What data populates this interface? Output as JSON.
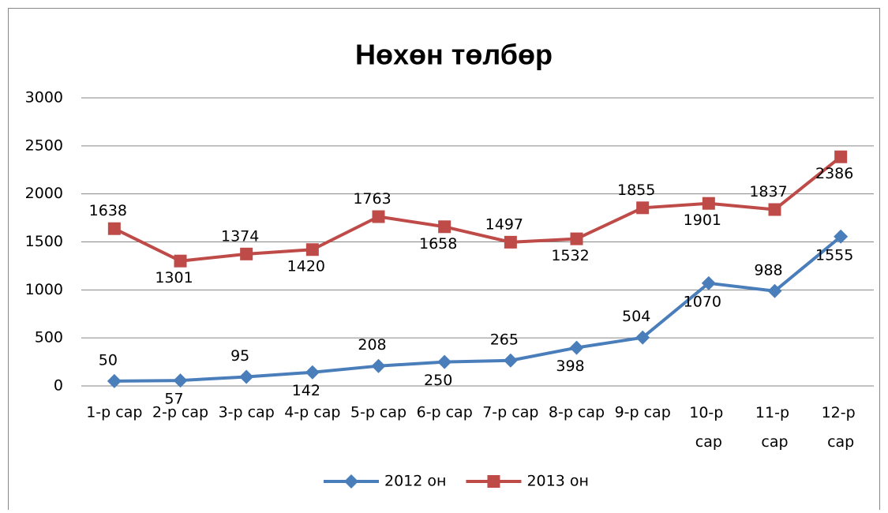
{
  "chart_data": {
    "type": "line",
    "title": "Нөхөн төлбөр",
    "categories": [
      "1-р сар",
      "2-р сар",
      "3-р сар",
      "4-р сар",
      "5-р сар",
      "6-р сар",
      "7-р сар",
      "8-р сар",
      "9-р сар",
      "10-р сар",
      "11-р сар",
      "12-р сар"
    ],
    "series": [
      {
        "name": "2012 он",
        "color": "#4a7ebb",
        "marker": "diamond",
        "values": [
          50,
          57,
          95,
          142,
          208,
          250,
          265,
          398,
          504,
          1070,
          988,
          1555
        ]
      },
      {
        "name": "2013 он",
        "color": "#be4b48",
        "marker": "square",
        "values": [
          1638,
          1301,
          1374,
          1420,
          1763,
          1658,
          1497,
          1532,
          1855,
          1901,
          1837,
          2386
        ]
      }
    ],
    "ylim": [
      0,
      3000
    ],
    "yticks": [
      0,
      500,
      1000,
      1500,
      2000,
      2500,
      3000
    ],
    "grid": true,
    "legend": "bottom"
  }
}
